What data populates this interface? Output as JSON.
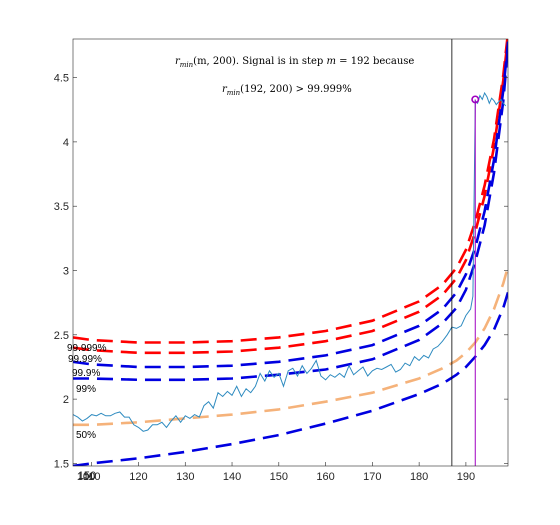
{
  "chart_data": {
    "type": "line",
    "title": "",
    "xlabel": "",
    "ylabel": "",
    "xlim": [
      106,
      199
    ],
    "ylim": [
      1.48,
      4.8
    ],
    "x_ticks": [
      110,
      120,
      130,
      140,
      150,
      160,
      170,
      180,
      190
    ],
    "x_tick_labels": [
      "110",
      "120",
      "130",
      "140",
      "150",
      "160",
      "170",
      "180",
      "190"
    ],
    "x_tick_overlap": {
      "label_a": "100",
      "label_b": "150"
    },
    "y_ticks": [
      1.5,
      2,
      2.5,
      3,
      3.5,
      4,
      4.5
    ],
    "y_tick_labels": [
      "1.5",
      "2",
      "2.5",
      "3",
      "3.5",
      "4",
      "4.5"
    ],
    "grid": false,
    "legend": "none",
    "annotation": {
      "line1_prefix_base": "r",
      "line1_prefix_sub": "min",
      "line1_prefix_args": "(m, 200). Signal is in step ",
      "line1_m": "m",
      "line1_suffix": " = 192 because",
      "line2_base": "r",
      "line2_sub": "min",
      "line2_rest": "(192, 200) > 99.999%"
    },
    "band_labels": [
      "99.999%",
      "99.99%",
      "99.9%",
      "99%",
      "50%"
    ],
    "colors": {
      "red": "#ff0000",
      "blue": "#0000e0",
      "orange": "#f5b27a",
      "signal": "#2e8bc0",
      "magenta": "#a000c0",
      "change_line": "#000000"
    },
    "thresholds": {
      "x": [
        106,
        110,
        120,
        130,
        140,
        150,
        160,
        170,
        180,
        185,
        188,
        190,
        192,
        194,
        196,
        198,
        199
      ],
      "series": [
        {
          "level": "99.999%",
          "color": "red",
          "values": [
            2.48,
            2.46,
            2.44,
            2.44,
            2.45,
            2.48,
            2.53,
            2.61,
            2.76,
            2.89,
            3.02,
            3.16,
            3.38,
            3.66,
            4.02,
            4.52,
            4.85
          ]
        },
        {
          "level": "99.99%",
          "color": "red",
          "values": [
            2.4,
            2.38,
            2.36,
            2.36,
            2.37,
            2.4,
            2.45,
            2.53,
            2.68,
            2.81,
            2.94,
            3.08,
            3.3,
            3.58,
            3.96,
            4.48,
            4.82
          ]
        },
        {
          "level": "99.9%",
          "color": "blue",
          "values": [
            2.29,
            2.27,
            2.25,
            2.25,
            2.26,
            2.29,
            2.34,
            2.42,
            2.57,
            2.7,
            2.83,
            2.97,
            3.18,
            3.46,
            3.86,
            4.4,
            4.78
          ]
        },
        {
          "level": "99%",
          "color": "blue",
          "values": [
            2.16,
            2.16,
            2.15,
            2.15,
            2.16,
            2.19,
            2.23,
            2.31,
            2.46,
            2.59,
            2.71,
            2.85,
            3.07,
            3.35,
            3.76,
            4.32,
            4.74
          ]
        },
        {
          "level": "50%",
          "color": "orange",
          "values": [
            1.8,
            1.8,
            1.82,
            1.85,
            1.88,
            1.92,
            1.98,
            2.05,
            2.16,
            2.24,
            2.3,
            2.36,
            2.44,
            2.55,
            2.7,
            2.9,
            3.03
          ]
        },
        {
          "level": "lowest",
          "color": "blue",
          "values": [
            1.48,
            1.5,
            1.54,
            1.59,
            1.65,
            1.72,
            1.81,
            1.91,
            2.04,
            2.12,
            2.19,
            2.25,
            2.33,
            2.42,
            2.54,
            2.71,
            2.83
          ]
        }
      ]
    },
    "signal": {
      "x": [
        106,
        107,
        108,
        109,
        110,
        111,
        112,
        113,
        114,
        115,
        116,
        117,
        118,
        119,
        120,
        121,
        122,
        123,
        124,
        125,
        126,
        127,
        128,
        129,
        130,
        131,
        132,
        133,
        134,
        135,
        136,
        137,
        138,
        139,
        140,
        141,
        142,
        143,
        144,
        145,
        146,
        147,
        148,
        149,
        150,
        151,
        152,
        153,
        154,
        155,
        156,
        157,
        158,
        159,
        160,
        161,
        162,
        163,
        164,
        165,
        166,
        167,
        168,
        169,
        170,
        171,
        172,
        173,
        174,
        175,
        176,
        177,
        178,
        179,
        180,
        181,
        182,
        183,
        184,
        185,
        186,
        187,
        188,
        189,
        190,
        191,
        191.5,
        192,
        192.5,
        193,
        193.5,
        194,
        194.5,
        195,
        195.5,
        196,
        196.5,
        197,
        197.5,
        198,
        198.5
      ],
      "values": [
        1.88,
        1.86,
        1.83,
        1.85,
        1.88,
        1.87,
        1.89,
        1.87,
        1.87,
        1.89,
        1.9,
        1.86,
        1.86,
        1.8,
        1.78,
        1.75,
        1.76,
        1.8,
        1.8,
        1.82,
        1.78,
        1.83,
        1.87,
        1.82,
        1.87,
        1.85,
        1.88,
        1.86,
        1.95,
        1.98,
        1.93,
        2.05,
        2.02,
        2.06,
        2.03,
        2.1,
        2.02,
        2.08,
        2.05,
        2.1,
        2.2,
        2.14,
        2.22,
        2.17,
        2.2,
        2.1,
        2.22,
        2.24,
        2.18,
        2.26,
        2.2,
        2.24,
        2.3,
        2.18,
        2.15,
        2.19,
        2.17,
        2.2,
        2.17,
        2.26,
        2.19,
        2.22,
        2.25,
        2.18,
        2.22,
        2.24,
        2.23,
        2.25,
        2.27,
        2.21,
        2.23,
        2.28,
        2.26,
        2.33,
        2.3,
        2.34,
        2.32,
        2.39,
        2.41,
        2.45,
        2.5,
        2.56,
        2.55,
        2.57,
        2.65,
        2.7,
        2.8,
        4.32,
        4.3,
        4.36,
        4.33,
        4.38,
        4.35,
        4.3,
        4.34,
        4.32,
        4.29,
        4.31,
        4.33,
        4.3,
        4.28
      ]
    },
    "change_point_x": 187,
    "detection": {
      "x": 192,
      "y": 4.33
    }
  }
}
